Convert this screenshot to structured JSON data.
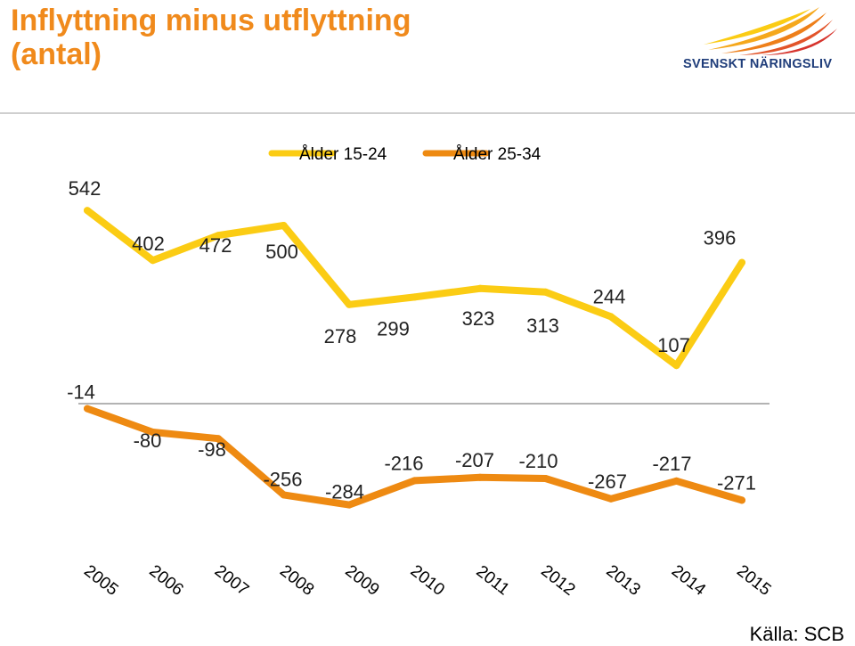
{
  "header": {
    "title_line1": "Inflyttning minus utflyttning",
    "title_line2": "(antal)",
    "logo_text": "SVENSKT NÄRINGSLIV"
  },
  "source": "Källa: SCB",
  "colors": {
    "title": "#F08A1C",
    "series1": "#FBCC14",
    "series2": "#EE8A12",
    "logo_text": "#1F3D7A"
  },
  "chart_data": {
    "type": "line",
    "title": "Inflyttning minus utflyttning (antal)",
    "x": [
      "2005",
      "2006",
      "2007",
      "2008",
      "2009",
      "2010",
      "2011",
      "2012",
      "2013",
      "2014",
      "2015"
    ],
    "series": [
      {
        "name": "Ålder 15-24",
        "values": [
          542,
          402,
          472,
          500,
          278,
          299,
          323,
          313,
          244,
          107,
          396
        ]
      },
      {
        "name": "Ålder 25-34",
        "values": [
          -14,
          -80,
          -98,
          -256,
          -284,
          -216,
          -207,
          -210,
          -267,
          -217,
          -271
        ]
      }
    ],
    "xlabel": "",
    "ylabel": "",
    "legend": "top-center",
    "grid": false,
    "data_labels": true,
    "zero_line": true
  }
}
